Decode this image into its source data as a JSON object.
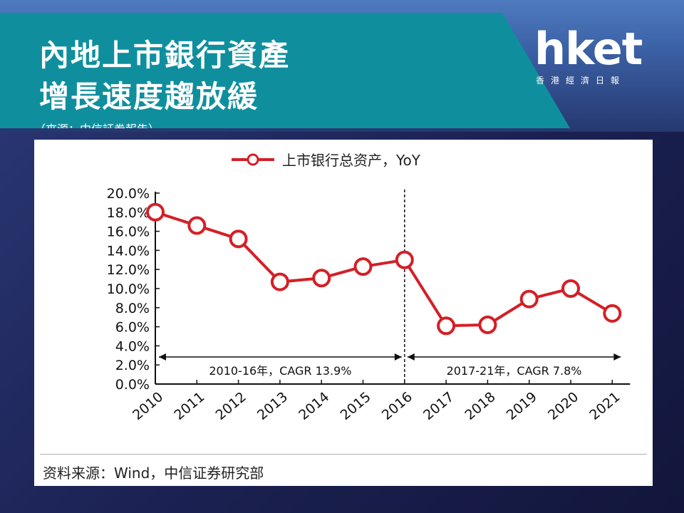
{
  "header": {
    "title_line1": "內地上市銀行資產",
    "title_line2": "增長速度趨放緩",
    "source": "（來源：中信証券報告）"
  },
  "logo": {
    "word": "hket",
    "subtitle": "香港經濟日報"
  },
  "chart_footer": {
    "source": "资料来源：Wind，中信证券研究部"
  },
  "colors": {
    "series": "#d41f26",
    "banner": "#0f8f9e"
  },
  "chart_data": {
    "type": "line",
    "x": [
      "2010",
      "2011",
      "2012",
      "2013",
      "2014",
      "2015",
      "2016",
      "2017",
      "2018",
      "2019",
      "2020",
      "2021"
    ],
    "series": [
      {
        "name": "上市银行总资产，YoY",
        "values": [
          18.0,
          16.6,
          15.2,
          10.7,
          11.1,
          12.3,
          13.0,
          6.1,
          6.2,
          8.9,
          10.0,
          7.4
        ]
      }
    ],
    "ylim": [
      0,
      20
    ],
    "yticks": [
      "0.0%",
      "2.0%",
      "4.0%",
      "6.0%",
      "8.0%",
      "10.0%",
      "12.0%",
      "14.0%",
      "16.0%",
      "18.0%",
      "20.0%"
    ],
    "legend": "top-center",
    "grid": false,
    "annotations": [
      {
        "text": "2010-16年，CAGR 13.9%",
        "from": "2010",
        "to": "2016"
      },
      {
        "text": "2017-21年，CAGR 7.8%",
        "from": "2016",
        "to": "2021"
      }
    ],
    "divider_at": "2016"
  }
}
